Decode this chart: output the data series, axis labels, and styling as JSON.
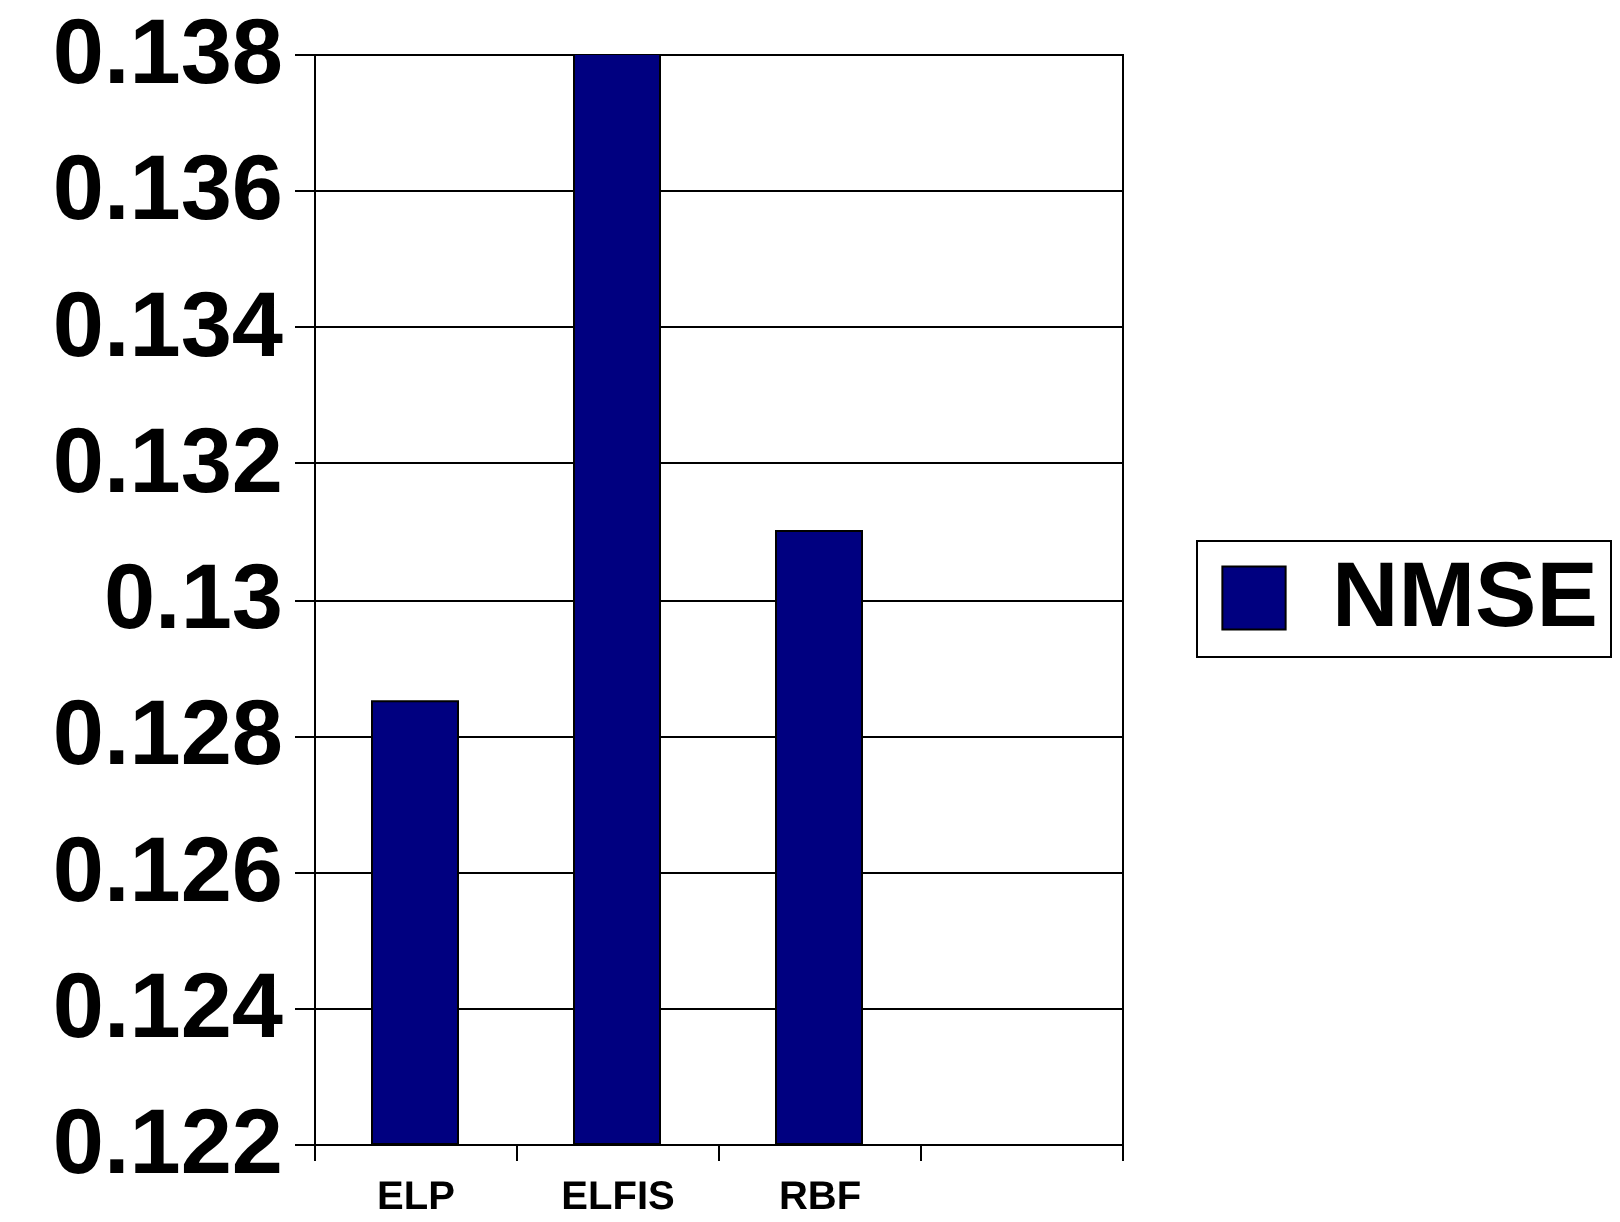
{
  "chart_data": {
    "type": "bar",
    "categories": [
      "ELP",
      "ELFIS",
      "RBF",
      null
    ],
    "series": [
      {
        "name": "NMSE",
        "color": "#000080",
        "values": [
          0.1285,
          0.138,
          0.131,
          null
        ]
      }
    ],
    "ylim": [
      0.122,
      0.138
    ],
    "yticks": [
      0.122,
      0.124,
      0.126,
      0.128,
      0.13,
      0.132,
      0.134,
      0.136,
      0.138
    ],
    "grid": "y",
    "legend": "right"
  }
}
